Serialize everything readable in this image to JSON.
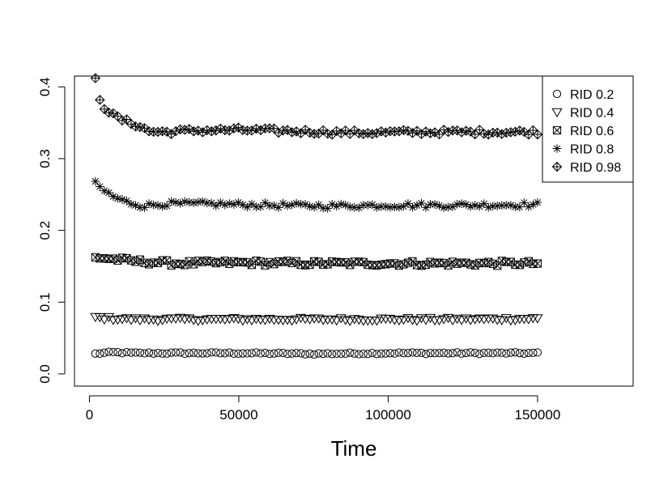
{
  "chart_data": {
    "type": "scatter",
    "title": "",
    "xlabel": "Time",
    "ylabel": "",
    "xlim": [
      -5000,
      182000
    ],
    "ylim": [
      -0.017,
      0.415
    ],
    "x_ticks": [
      0,
      50000,
      100000,
      150000
    ],
    "x_tick_labels": [
      "0",
      "50000",
      "100000",
      "150000"
    ],
    "y_ticks": [
      0.0,
      0.1,
      0.2,
      0.3,
      0.4
    ],
    "y_tick_labels": [
      "0.0",
      "0.1",
      "0.2",
      "0.3",
      "0.4"
    ],
    "grid": false,
    "legend_position": "top-right",
    "x_range": [
      2000,
      150000
    ],
    "points_per_series": 100,
    "series": [
      {
        "name": "RID 0.2",
        "marker": "circle",
        "shape_x": [
          2000,
          4000,
          8000,
          15000,
          30000,
          50000,
          75000,
          100000,
          125000,
          150000
        ],
        "shape_y": [
          0.028,
          0.029,
          0.03,
          0.029,
          0.029,
          0.029,
          0.028,
          0.029,
          0.029,
          0.029
        ]
      },
      {
        "name": "RID 0.4",
        "marker": "triangle-down",
        "shape_x": [
          2000,
          4000,
          8000,
          15000,
          30000,
          50000,
          75000,
          100000,
          125000,
          150000
        ],
        "shape_y": [
          0.079,
          0.078,
          0.077,
          0.076,
          0.076,
          0.076,
          0.076,
          0.076,
          0.076,
          0.077
        ]
      },
      {
        "name": "RID 0.6",
        "marker": "boxed-x",
        "shape_x": [
          2000,
          4000,
          8000,
          15000,
          30000,
          50000,
          75000,
          100000,
          125000,
          150000
        ],
        "shape_y": [
          0.162,
          0.162,
          0.16,
          0.157,
          0.154,
          0.155,
          0.154,
          0.154,
          0.154,
          0.154
        ]
      },
      {
        "name": "RID 0.8",
        "marker": "asterisk",
        "shape_x": [
          2000,
          4000,
          8000,
          12000,
          18000,
          25000,
          40000,
          60000,
          80000,
          100000,
          125000,
          150000
        ],
        "shape_y": [
          0.265,
          0.258,
          0.247,
          0.24,
          0.234,
          0.237,
          0.237,
          0.235,
          0.234,
          0.235,
          0.235,
          0.236
        ]
      },
      {
        "name": "RID 0.98",
        "marker": "diamond-plus",
        "shape_x": [
          2000,
          3000,
          5000,
          8000,
          12000,
          16000,
          20000,
          25000,
          35000,
          50000,
          70000,
          90000,
          110000,
          130000,
          150000
        ],
        "shape_y": [
          0.41,
          0.388,
          0.372,
          0.36,
          0.352,
          0.347,
          0.338,
          0.337,
          0.339,
          0.34,
          0.338,
          0.336,
          0.337,
          0.337,
          0.337
        ]
      }
    ]
  }
}
